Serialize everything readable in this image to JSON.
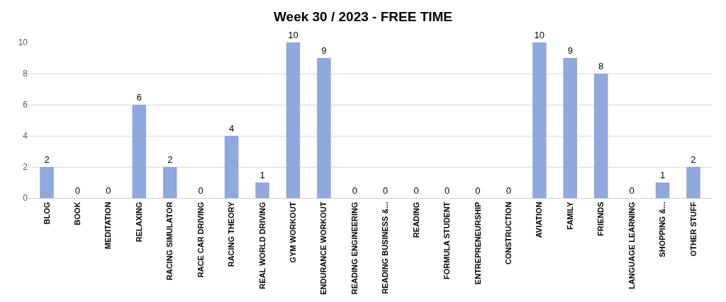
{
  "chart_data": {
    "type": "bar",
    "title": "Week 30 / 2023 - FREE TIME",
    "categories": [
      "BLOG",
      "BOOK",
      "MEDITATION",
      "RELAXING",
      "RACING SIMULATOR",
      "RACE CAR DRIVING",
      "RACING THEORY",
      "REAL WORLD DRIVING",
      "GYM WORKOUT",
      "ENDURANCE WORKOUT",
      "READING ENGINEERING",
      "READING BUSINESS &...",
      "READING",
      "FORMULA STUDENT",
      "ENTREPRENEURSHIP",
      "CONSTRUCTION",
      "AVIATION",
      "FAMILY",
      "FRIENDS",
      "LANGUAGE LEARNING",
      "SHOPPING &...",
      "OTHER STUFF"
    ],
    "values": [
      2,
      0,
      0,
      6,
      2,
      0,
      4,
      1,
      10,
      9,
      0,
      0,
      0,
      0,
      0,
      0,
      10,
      9,
      8,
      0,
      1,
      2
    ],
    "color": "#8fa8de",
    "ylim": [
      0,
      10
    ],
    "yticks": [
      0,
      2,
      4,
      6,
      8,
      10
    ],
    "grid": "y",
    "data_labels": true
  }
}
